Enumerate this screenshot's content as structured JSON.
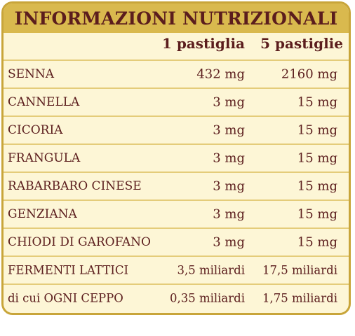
{
  "header": {
    "title": "INFORMAZIONI NUTRIZIONALI"
  },
  "columns": [
    "1 pastiglia",
    "5 pastiglie"
  ],
  "rows": [
    {
      "name": "SENNA",
      "v1": "432 mg",
      "v2": "2160 mg"
    },
    {
      "name": "CANNELLA",
      "v1": "3 mg",
      "v2": "15 mg"
    },
    {
      "name": "CICORIA",
      "v1": "3 mg",
      "v2": "15 mg"
    },
    {
      "name": "FRANGULA",
      "v1": "3 mg",
      "v2": "15 mg"
    },
    {
      "name": "RABARBARO CINESE",
      "v1": "3 mg",
      "v2": "15 mg"
    },
    {
      "name": "GENZIANA",
      "v1": "3 mg",
      "v2": "15 mg"
    },
    {
      "name": "CHIODI DI GAROFANO",
      "v1": "3 mg",
      "v2": "15 mg"
    },
    {
      "name": "FERMENTI LATTICI",
      "v1": "3,5 miliardi",
      "v2": "17,5 miliardi"
    },
    {
      "name": "di cui OGNI CEPPO",
      "v1": "0,35 miliardi",
      "v2": "1,75 miliardi"
    }
  ],
  "colors": {
    "header_bg": "#d9b94e",
    "panel_bg": "#fdf6d6",
    "text": "#5b1d1d",
    "border": "#c8a53a"
  }
}
